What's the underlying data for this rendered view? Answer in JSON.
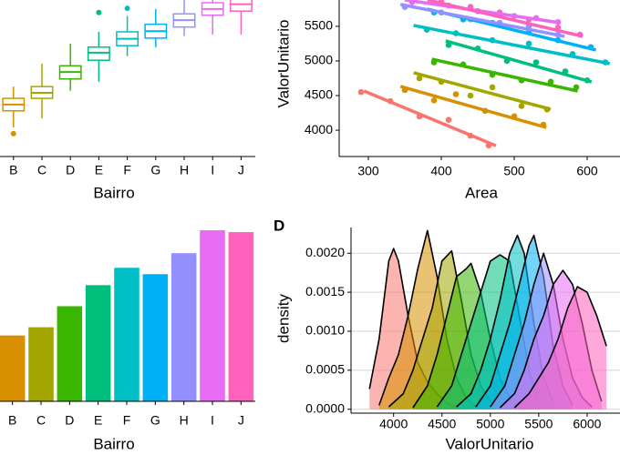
{
  "chart_data": [
    {
      "type": "box",
      "xlabel": "Bairro",
      "categories": [
        null,
        "B",
        "C",
        "D",
        "E",
        "F",
        "G",
        "H",
        "I",
        "J"
      ],
      "colors": [
        "#F8766D",
        "#D89000",
        "#A3A500",
        "#39B600",
        "#00BF7D",
        "#00BFC4",
        "#00B0F6",
        "#9590FF",
        "#E76BF3",
        "#FF62BC"
      ],
      "min": [
        3840,
        4040,
        4170,
        4570,
        4700,
        5070,
        5200,
        5360,
        5380,
        5380
      ],
      "q1": [
        4010,
        4280,
        4460,
        4740,
        5010,
        5220,
        5330,
        5490,
        5660,
        5720
      ],
      "median": [
        4100,
        4370,
        4540,
        4840,
        5120,
        5320,
        5430,
        5590,
        5750,
        5820
      ],
      "q3": [
        4200,
        4460,
        4630,
        4930,
        5200,
        5420,
        5530,
        5680,
        5840,
        5910
      ],
      "max": [
        4370,
        4630,
        4960,
        5250,
        5420,
        5650,
        5750,
        5880,
        6010,
        6040
      ],
      "outliers": [
        [],
        [
          3950
        ],
        [],
        [],
        [
          5700
        ],
        [
          5760
        ],
        [],
        [],
        [],
        []
      ],
      "ylim": [
        3620,
        5880
      ]
    },
    {
      "type": "scatter",
      "xlabel": "Area",
      "ylabel": "ValorUnitario",
      "xlim": [
        260,
        645
      ],
      "ylim": [
        3620,
        5880
      ],
      "xticks": [
        300,
        400,
        500,
        600
      ],
      "yticks": [
        4000,
        4500,
        5000,
        5500
      ],
      "series": [
        {
          "color": "#F8766D",
          "x": [
            290,
            330,
            370,
            410,
            440,
            465
          ],
          "values": [
            4550,
            4420,
            4200,
            4150,
            3920,
            3780
          ],
          "fit_x": [
            294,
            475
          ],
          "fit_values": [
            4566,
            3776
          ]
        },
        {
          "color": "#D89000",
          "x": [
            350,
            390,
            420,
            460,
            500,
            540
          ],
          "values": [
            4580,
            4430,
            4520,
            4280,
            4200,
            4080
          ],
          "fit_x": [
            344,
            544
          ],
          "fit_values": [
            4632,
            4039
          ]
        },
        {
          "color": "#A3A500",
          "x": [
            370,
            400,
            440,
            470,
            510,
            545
          ],
          "values": [
            4750,
            4700,
            4500,
            4620,
            4350,
            4300
          ],
          "fit_x": [
            362,
            550
          ],
          "fit_values": [
            4829,
            4303
          ]
        },
        {
          "color": "#39B600",
          "x": [
            390,
            430,
            470,
            510,
            550,
            585
          ],
          "values": [
            4980,
            4950,
            4800,
            4720,
            4700,
            4620
          ],
          "fit_x": [
            387,
            587
          ],
          "fit_values": [
            5026,
            4566
          ]
        },
        {
          "color": "#00BF7D",
          "x": [
            410,
            450,
            490,
            530,
            570,
            600
          ],
          "values": [
            5230,
            5180,
            5000,
            4980,
            4850,
            4720
          ],
          "fit_x": [
            406,
            606
          ],
          "fit_values": [
            5290,
            4697
          ]
        },
        {
          "color": "#00BFC4",
          "x": [
            380,
            420,
            470,
            520,
            580,
            625
          ],
          "values": [
            5450,
            5400,
            5300,
            5250,
            5100,
            4980
          ],
          "fit_x": [
            362,
            631
          ],
          "fit_values": [
            5513,
            4961
          ]
        },
        {
          "color": "#00B0F6",
          "x": [
            390,
            430,
            470,
            520,
            560,
            605
          ],
          "values": [
            5700,
            5600,
            5550,
            5420,
            5300,
            5200
          ],
          "fit_x": [
            381,
            612
          ],
          "fit_values": [
            5750,
            5158
          ]
        },
        {
          "color": "#9590FF",
          "x": [
            350,
            400,
            440,
            480,
            520,
            560
          ],
          "values": [
            5780,
            5700,
            5600,
            5550,
            5500,
            5380
          ],
          "fit_x": [
            344,
            569
          ],
          "fit_values": [
            5816,
            5355
          ]
        },
        {
          "color": "#E76BF3",
          "x": [
            360,
            410,
            450,
            500,
            530,
            560
          ],
          "values": [
            5850,
            5800,
            5720,
            5650,
            5620,
            5560
          ],
          "fit_x": [
            350,
            562
          ],
          "fit_values": [
            5882,
            5553
          ]
        },
        {
          "color": "#FF62BC",
          "x": [
            400,
            440,
            480,
            520,
            560,
            590
          ],
          "values": [
            5860,
            5780,
            5700,
            5600,
            5480,
            5380
          ],
          "fit_x": [
            381,
            594
          ],
          "fit_values": [
            5882,
            5355
          ]
        }
      ]
    },
    {
      "type": "bar",
      "xlabel": "Bairro",
      "categories": [
        "B",
        "C",
        "D",
        "E",
        "F",
        "G",
        "H",
        "I",
        "J"
      ],
      "values": [
        72,
        81,
        104,
        127,
        146,
        139,
        162,
        187,
        185
      ],
      "colors": [
        "#D89000",
        "#A3A500",
        "#39B600",
        "#00BF7D",
        "#00BFC4",
        "#00B0F6",
        "#9590FF",
        "#E76BF3",
        "#FF62BC"
      ],
      "ylim": [
        0,
        200
      ]
    },
    {
      "type": "density",
      "title": "D",
      "xlabel": "ValorUnitario",
      "ylabel": "density",
      "grid": true,
      "xlim": [
        3560,
        6340
      ],
      "ylim": [
        -5e-05,
        0.00233
      ],
      "xticks": [
        4000,
        4500,
        5000,
        5500,
        6000
      ],
      "yticks": [
        {
          "value": 0,
          "label": "0.0000"
        },
        {
          "value": 0.0005,
          "label": "0.0005"
        },
        {
          "value": 0.001,
          "label": "0.0010"
        },
        {
          "value": 0.0015,
          "label": "0.0015"
        },
        {
          "value": 0.002,
          "label": "0.0020"
        }
      ],
      "series": [
        {
          "color": "#F8766D",
          "x": [
            3750,
            3850,
            3950,
            4000,
            4050,
            4150,
            4250,
            4350,
            4450,
            4550,
            4650
          ],
          "values": [
            0.00026,
            0.0009,
            0.0019,
            0.00206,
            0.0019,
            0.0012,
            0.0006,
            0.00035,
            0.0002,
            8e-05,
            2e-05
          ]
        },
        {
          "color": "#D89000",
          "x": [
            3850,
            3950,
            4050,
            4150,
            4250,
            4350,
            4450,
            4550,
            4650,
            4750,
            4850
          ],
          "values": [
            5e-05,
            0.0004,
            0.0007,
            0.0012,
            0.0018,
            0.00229,
            0.0017,
            0.0009,
            0.0004,
            0.00015,
            3e-05
          ]
        },
        {
          "color": "#A3A500",
          "x": [
            3950,
            4100,
            4200,
            4300,
            4400,
            4500,
            4600,
            4700,
            4800,
            4900,
            5000,
            5100
          ],
          "values": [
            3e-05,
            0.0002,
            0.0005,
            0.0009,
            0.0013,
            0.0019,
            0.00203,
            0.0014,
            0.0007,
            0.0003,
            0.0001,
            2e-05
          ]
        },
        {
          "color": "#39B600",
          "x": [
            4200,
            4350,
            4450,
            4550,
            4650,
            4750,
            4800,
            4900,
            5000,
            5100,
            5200,
            5300
          ],
          "values": [
            2e-05,
            0.0003,
            0.0007,
            0.0012,
            0.0017,
            0.0018,
            0.00187,
            0.0015,
            0.0009,
            0.0004,
            0.00015,
            3e-05
          ]
        },
        {
          "color": "#00BF7D",
          "x": [
            4450,
            4600,
            4700,
            4800,
            4900,
            5000,
            5100,
            5200,
            5300,
            5400,
            5500
          ],
          "values": [
            3e-05,
            0.0003,
            0.0007,
            0.0011,
            0.0015,
            0.0019,
            0.00198,
            0.0019,
            0.0012,
            0.0005,
            0.0001
          ]
        },
        {
          "color": "#00BFC4",
          "x": [
            4650,
            4800,
            4900,
            5000,
            5100,
            5200,
            5280,
            5350,
            5450,
            5550,
            5650
          ],
          "values": [
            3e-05,
            0.0002,
            0.0005,
            0.0009,
            0.0014,
            0.002,
            0.00223,
            0.002,
            0.0011,
            0.0004,
            0.0001
          ]
        },
        {
          "color": "#00B0F6",
          "x": [
            4850,
            5000,
            5100,
            5200,
            5300,
            5400,
            5450,
            5550,
            5650,
            5750,
            5850
          ],
          "values": [
            3e-05,
            0.0003,
            0.0007,
            0.0011,
            0.0016,
            0.0021,
            0.00223,
            0.0017,
            0.0008,
            0.0003,
            5e-05
          ]
        },
        {
          "color": "#9590FF",
          "x": [
            5000,
            5150,
            5250,
            5350,
            5450,
            5550,
            5650,
            5750,
            5850,
            5950,
            6050
          ],
          "values": [
            3e-05,
            0.0003,
            0.0007,
            0.0011,
            0.0016,
            0.002,
            0.0016,
            0.0009,
            0.0004,
            0.00015,
            3e-05
          ]
        },
        {
          "color": "#E76BF3",
          "x": [
            5100,
            5250,
            5350,
            5450,
            5550,
            5650,
            5750,
            5850,
            5950,
            6050,
            6150
          ],
          "values": [
            2e-05,
            0.0002,
            0.0005,
            0.0009,
            0.0012,
            0.0016,
            0.00178,
            0.0016,
            0.0011,
            0.0005,
            0.0001
          ]
        },
        {
          "color": "#FF62BC",
          "x": [
            5250,
            5400,
            5500,
            5600,
            5700,
            5800,
            5900,
            6000,
            6100,
            6200
          ],
          "values": [
            2e-05,
            0.0002,
            0.0004,
            0.0006,
            0.0009,
            0.0013,
            0.00157,
            0.0015,
            0.0012,
            0.00081
          ]
        }
      ]
    }
  ]
}
